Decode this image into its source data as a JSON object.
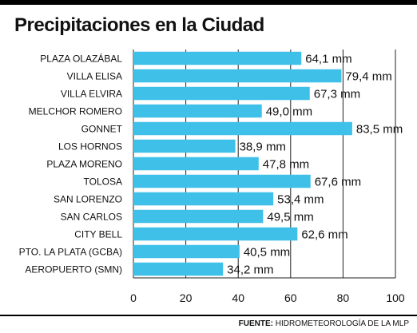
{
  "chart_data": {
    "type": "bar",
    "orientation": "horizontal",
    "title": "Precipitaciones en la Ciudad",
    "categories": [
      "PLAZA OLAZÁBAL",
      "VILLA ELISA",
      "VILLA ELVIRA",
      "MELCHOR ROMERO",
      "GONNET",
      "LOS HORNOS",
      "PLAZA MORENO",
      "TOLOSA",
      "SAN LORENZO",
      "SAN CARLOS",
      "CITY BELL",
      "PTO. LA PLATA (GCBA)",
      "AEROPUERTO (SMN)"
    ],
    "values": [
      64.1,
      79.4,
      67.3,
      49.0,
      83.5,
      38.9,
      47.8,
      67.6,
      53.4,
      49.5,
      62.6,
      40.5,
      34.2
    ],
    "value_labels": [
      "64,1 mm",
      "79,4 mm",
      "67,3 mm",
      "49,0 mm",
      "83,5 mm",
      "38,9 mm",
      "47,8 mm",
      "67,6 mm",
      "53,4 mm",
      "49,5 mm",
      "62,6 mm",
      "40,5 mm",
      "34,2 mm"
    ],
    "xlim": [
      0,
      100
    ],
    "xticks": [
      0,
      20,
      40,
      60,
      80,
      100
    ],
    "xtick_labels": [
      "0",
      "20",
      "40",
      "60",
      "80",
      "100"
    ],
    "grid": true,
    "bar_color": "#3ec0e8",
    "xlabel": "",
    "ylabel": ""
  },
  "source": {
    "label": "FUENTE:",
    "text": "HIDROMETEOROLOGÍA DE LA MLP"
  }
}
